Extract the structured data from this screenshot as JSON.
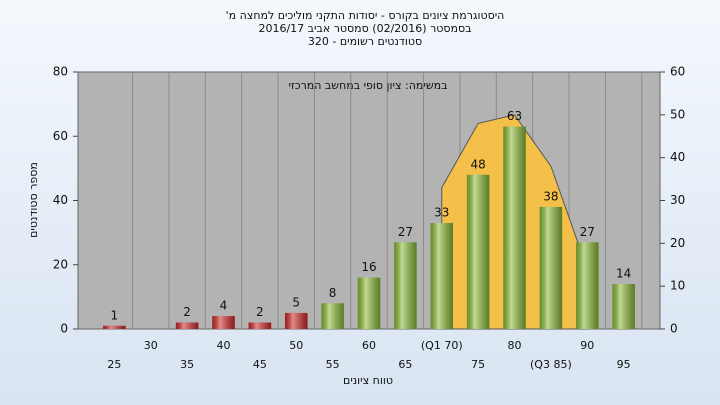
{
  "chart_data": {
    "type": "bar",
    "title": [
      "היסטוגרמת ציונים בקורס - יסודות התקני מוליכים למחצה מ'",
      "בסמסטר (02/2016) סמסטר אביב 2016/17",
      "סטודנטים רשומים - 320"
    ],
    "annotation": "במשימה: ציון סופי במחשב המרכזי",
    "xlabel": "טווח ציונים",
    "ylabel": "מספר סטודנטים",
    "categories": [
      "25",
      "30",
      "35",
      "40",
      "45",
      "50",
      "55",
      "60",
      "65",
      "(Q1 70)",
      "75",
      "80",
      "(Q3 85)",
      "90",
      "95"
    ],
    "values": [
      1,
      0,
      2,
      4,
      2,
      5,
      8,
      16,
      27,
      33,
      48,
      63,
      38,
      27,
      14
    ],
    "value_labels": [
      "1",
      null,
      "2",
      "4",
      "2",
      "5",
      "8",
      "16",
      "27",
      "33",
      "48",
      "63",
      "38",
      "27",
      "14"
    ],
    "colors": [
      "#d42a2a",
      "#d42a2a",
      "#d42a2a",
      "#d42a2a",
      "#d42a2a",
      "#d42a2a",
      "#8fbf3a",
      "#8fbf3a",
      "#8fbf3a",
      "#8fbf3a",
      "#8fbf3a",
      "#8fbf3a",
      "#8fbf3a",
      "#8fbf3a",
      "#8fbf3a"
    ],
    "area": {
      "color": "#f5c04a",
      "axis": "y2",
      "values": [
        null,
        null,
        null,
        null,
        null,
        null,
        null,
        null,
        null,
        33,
        48,
        50,
        38,
        14,
        null
      ]
    },
    "ylim": [
      0,
      80
    ],
    "yticks": [
      0,
      20,
      40,
      60,
      80
    ],
    "y2lim": [
      0,
      60
    ],
    "y2ticks": [
      0,
      10,
      20,
      30,
      40,
      50,
      60
    ],
    "grid": true
  }
}
